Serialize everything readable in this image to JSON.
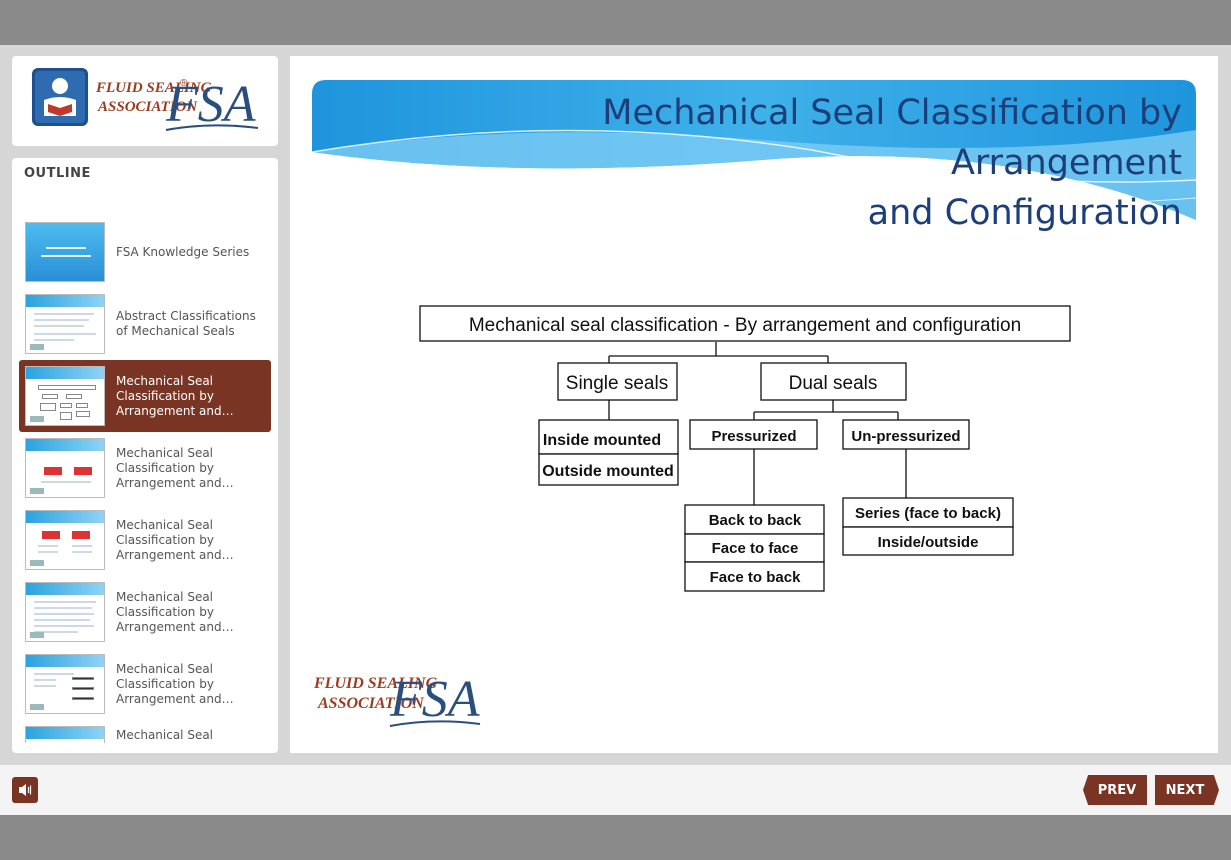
{
  "brand": {
    "logo_line1": "FLUID SEALING",
    "logo_line2": "ASSOCIATION",
    "logo_mark": "FSA",
    "logo_registered": "®",
    "icon": "person-reading-icon"
  },
  "outline": {
    "title": "OUTLINE",
    "items": [
      {
        "label": "FSA Knowledge Series",
        "active": false
      },
      {
        "label": "Abstract Classifications of Mechanical Seals",
        "active": false
      },
      {
        "label": "Mechanical Seal Classification by Arrangement and Config...",
        "active": true
      },
      {
        "label": "Mechanical Seal Classification by Arrangement and Config...",
        "active": false
      },
      {
        "label": "Mechanical Seal Classification by Arrangement and Config...",
        "active": false
      },
      {
        "label": "Mechanical Seal Classification by Arrangement and Config...",
        "active": false
      },
      {
        "label": "Mechanical Seal Classification by Arrangement and Config...",
        "active": false
      },
      {
        "label": "Mechanical Seal",
        "active": false
      }
    ]
  },
  "slide": {
    "title_line1": "Mechanical Seal Classification by Arrangement",
    "title_line2": "and Configuration",
    "diagram": {
      "root": "Mechanical seal classification - By arrangement and configuration",
      "single": "Single seals",
      "dual": "Dual  seals",
      "inside_mounted": "Inside mounted",
      "outside_mounted": "Outside mounted",
      "pressurized": "Pressurized",
      "unpressurized": "Un-pressurized",
      "back_to_back": "Back to back",
      "face_to_face": "Face to face",
      "face_to_back": "Face to back",
      "series": "Series (face to back)",
      "inside_outside": "Inside/outside"
    }
  },
  "controls": {
    "prev": "PREV",
    "next": "NEXT",
    "audio_icon": "speaker-icon"
  },
  "colors": {
    "accent": "#7a3424",
    "title": "#1c3f7a",
    "header_blue": "#2aa3e0"
  }
}
